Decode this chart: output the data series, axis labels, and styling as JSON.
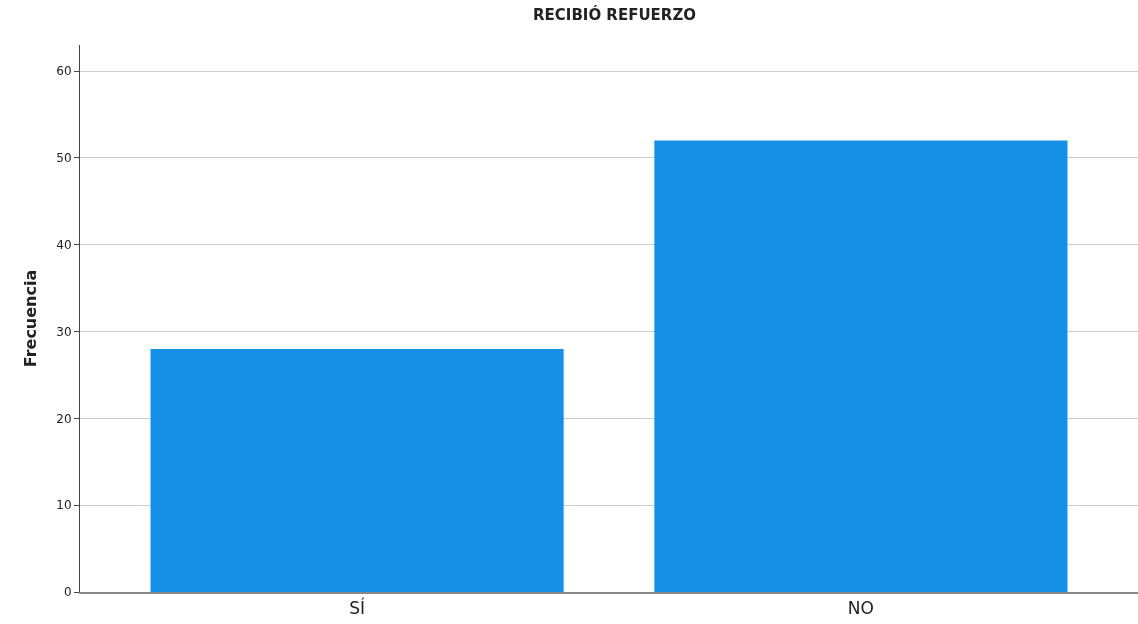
{
  "chart_data": {
    "type": "bar",
    "title": "RECIBIÓ REFUERZO",
    "ylabel": "Frecuencia",
    "categories": [
      "SÍ",
      "NO"
    ],
    "values": [
      28,
      52
    ],
    "color": "#1590e6",
    "ylim": [
      0,
      63
    ],
    "yticks": [
      0,
      10,
      20,
      30,
      40,
      50,
      60
    ],
    "grid": "y",
    "legend": false
  }
}
